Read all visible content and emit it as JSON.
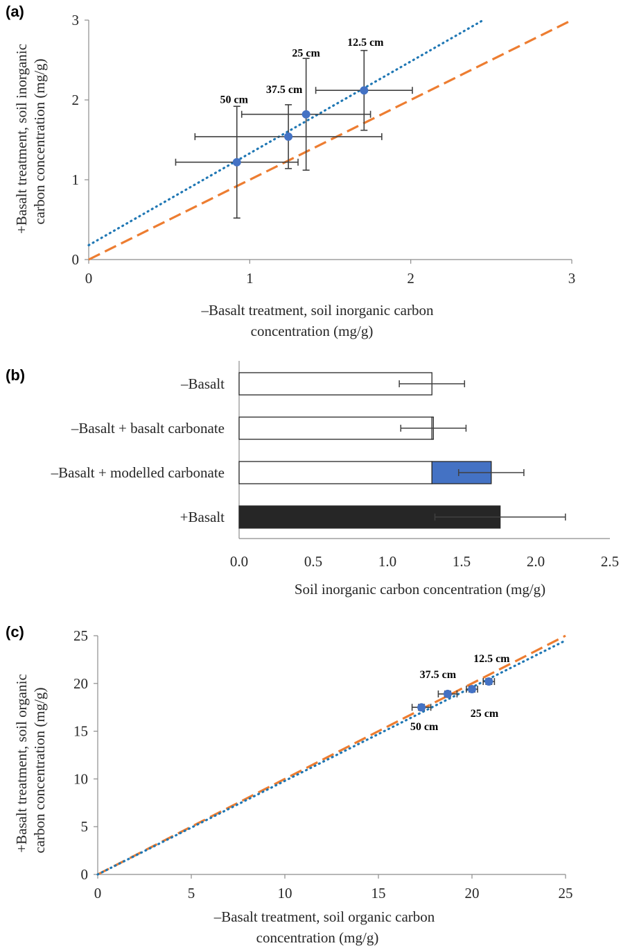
{
  "chart_data": [
    {
      "panel": "(a)",
      "type": "scatter",
      "xlabel": [
        "–Basalt treatment, soil inorganic carbon",
        "concentration (mg/g)"
      ],
      "ylabel": [
        "+Basalt treatment, soil inorganic",
        "carbon concentration  (mg/g)"
      ],
      "xlim": [
        0,
        3
      ],
      "ylim": [
        0,
        3
      ],
      "xticks": [
        "0",
        "1",
        "2",
        "3"
      ],
      "yticks": [
        "0",
        "1",
        "2",
        "3"
      ],
      "points": [
        {
          "label": "12.5 cm",
          "x": 1.71,
          "y": 2.12,
          "xerr": 0.3,
          "yerr": 0.5
        },
        {
          "label": "25 cm",
          "x": 1.35,
          "y": 1.82,
          "xerr": 0.4,
          "yerr": 0.7
        },
        {
          "label": "37.5 cm",
          "x": 1.24,
          "y": 1.54,
          "xerr": 0.58,
          "yerr": 0.4
        },
        {
          "label": "50 cm",
          "x": 0.92,
          "y": 1.22,
          "xerr": 0.38,
          "yerr": 0.7
        }
      ],
      "trendline": {
        "style": "dotted",
        "color": "#1f77b4",
        "x": [
          0,
          2.45
        ],
        "y": [
          0.18,
          3.0
        ]
      },
      "one_to_one": {
        "style": "dashed",
        "color": "#ed7d31",
        "x": [
          0,
          3
        ],
        "y": [
          0,
          3
        ]
      },
      "marker_color": "#4472c4"
    },
    {
      "panel": "(b)",
      "type": "bar",
      "orientation": "horizontal",
      "xlabel": "Soil inorganic carbon concentration (mg/g)",
      "xlim": [
        0,
        2.5
      ],
      "xticks": [
        "0.0",
        "0.5",
        "1.0",
        "1.5",
        "2.0",
        "2.5"
      ],
      "categories": [
        "–Basalt",
        "–Basalt + basalt carbonate",
        "–Basalt + modelled carbonate",
        "+Basalt"
      ],
      "base_values": [
        1.3,
        1.3,
        1.3,
        1.76
      ],
      "added_values": [
        0,
        0.01,
        0.4,
        0
      ],
      "totals": [
        1.3,
        1.31,
        1.7,
        1.76
      ],
      "errors": [
        0.22,
        0.22,
        0.22,
        0.44
      ],
      "bar_colors": [
        "#ffffff",
        "#ffffff",
        "#ffffff",
        "#262626"
      ],
      "added_colors": [
        "#ffffff",
        "#ffffff",
        "#4472c4",
        "#262626"
      ]
    },
    {
      "panel": "(c)",
      "type": "scatter",
      "xlabel": [
        "–Basalt treatment, soil organic carbon",
        "concentration (mg/g)"
      ],
      "ylabel": [
        "+Basalt treatment, soil organic",
        "carbon concentration  (mg/g)"
      ],
      "xlim": [
        0,
        25
      ],
      "ylim": [
        0,
        25
      ],
      "xticks": [
        "0",
        "5",
        "10",
        "15",
        "20",
        "25"
      ],
      "yticks": [
        "0",
        "5",
        "10",
        "15",
        "20",
        "25"
      ],
      "points": [
        {
          "label": "12.5 cm",
          "x": 20.9,
          "y": 20.2,
          "xerr": 0.3,
          "yerr": 0.3
        },
        {
          "label": "25 cm",
          "x": 20.0,
          "y": 19.4,
          "xerr": 0.3,
          "yerr": 0.3
        },
        {
          "label": "37.5 cm",
          "x": 18.7,
          "y": 18.9,
          "xerr": 0.5,
          "yerr": 0.3
        },
        {
          "label": "50 cm",
          "x": 17.3,
          "y": 17.5,
          "xerr": 0.5,
          "yerr": 0.3
        }
      ],
      "trendline": {
        "style": "dotted",
        "color": "#1f77b4",
        "x": [
          0,
          25
        ],
        "y": [
          0,
          24.5
        ]
      },
      "one_to_one": {
        "style": "dashed",
        "color": "#ed7d31",
        "x": [
          0,
          25
        ],
        "y": [
          0,
          25
        ]
      },
      "marker_color": "#4472c4"
    }
  ]
}
